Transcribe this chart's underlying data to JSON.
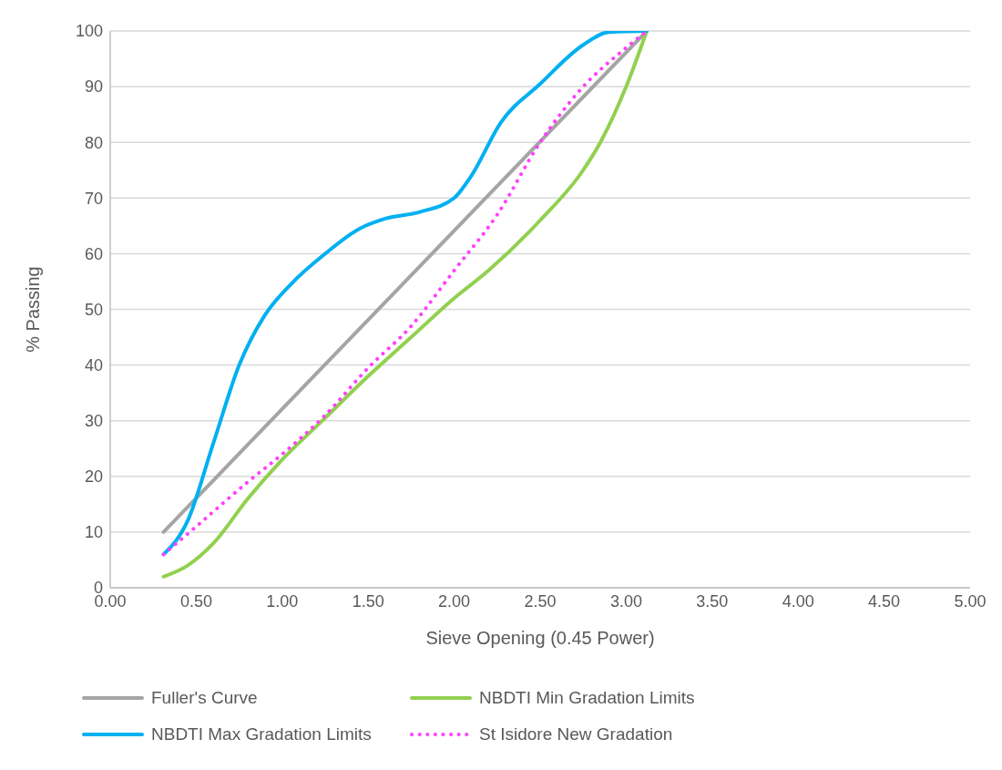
{
  "chart_data": {
    "type": "line",
    "xlabel": "Sieve Opening (0.45 Power)",
    "ylabel": "% Passing",
    "xlim": [
      0,
      5
    ],
    "xticks": [
      {
        "value": 0,
        "label": "0.00"
      },
      {
        "value": 0.5,
        "label": "0.50"
      },
      {
        "value": 1,
        "label": "1.00"
      },
      {
        "value": 1.5,
        "label": "1.50"
      },
      {
        "value": 2,
        "label": "2.00"
      },
      {
        "value": 2.5,
        "label": "2.50"
      },
      {
        "value": 3,
        "label": "3.00"
      },
      {
        "value": 3.5,
        "label": "3.50"
      },
      {
        "value": 4,
        "label": "4.00"
      },
      {
        "value": 4.5,
        "label": "4.50"
      },
      {
        "value": 5,
        "label": "5.00"
      }
    ],
    "ylim": [
      0,
      100
    ],
    "yticks": [
      0,
      10,
      20,
      30,
      40,
      50,
      60,
      70,
      80,
      90,
      100
    ],
    "grid": "y",
    "legend": "bottom",
    "marker": "none",
    "series": [
      {
        "name": "Fuller's Curve",
        "color": "#a5a5a5",
        "line_style": "solid",
        "x": [
          0.31,
          3.12
        ],
        "values": [
          10,
          100
        ]
      },
      {
        "name": "NBDTI Min Gradation Limits",
        "color": "#92d050",
        "line_style": "solid",
        "x": [
          0.31,
          0.45,
          0.6,
          0.8,
          1.0,
          1.25,
          1.5,
          1.75,
          2.0,
          2.2,
          2.5,
          2.75,
          2.85,
          3.0,
          3.12
        ],
        "values": [
          2,
          4,
          8,
          16,
          23,
          30.5,
          38,
          45,
          52,
          57,
          66,
          75,
          80,
          90,
          100
        ]
      },
      {
        "name": "NBDTI Max Gradation Limits",
        "color": "#00b0f0",
        "line_style": "solid",
        "x": [
          0.31,
          0.45,
          0.6,
          0.75,
          0.9,
          1.05,
          1.25,
          1.45,
          1.6,
          1.8,
          2.0,
          2.1,
          2.27,
          2.5,
          2.75,
          2.9,
          3.12
        ],
        "values": [
          6,
          12,
          26,
          40,
          49,
          54.5,
          60,
          64.5,
          66.3,
          67.5,
          70,
          74,
          83.5,
          90.5,
          97.5,
          99.8,
          100
        ]
      },
      {
        "name": "St Isidore New Gradation",
        "color": "#ff40ff",
        "line_style": "dotted",
        "x": [
          0.31,
          0.5,
          0.8,
          1.0,
          1.25,
          1.5,
          1.75,
          2.0,
          2.25,
          2.5,
          2.75,
          3.0,
          3.12
        ],
        "values": [
          6,
          11,
          19,
          24,
          31,
          39.5,
          47,
          57,
          67,
          80,
          90,
          97,
          100
        ]
      }
    ]
  }
}
